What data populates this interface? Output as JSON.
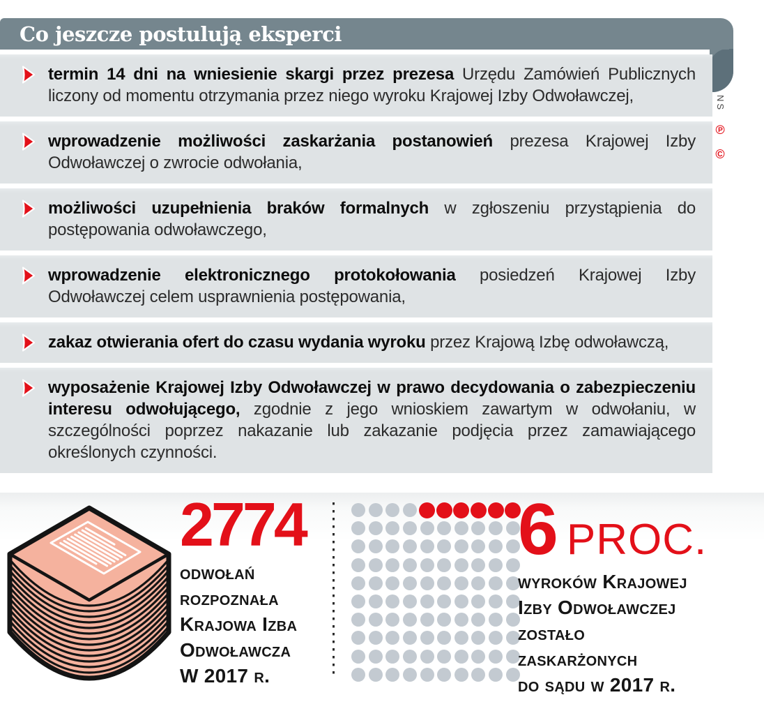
{
  "header": {
    "title": "Co jeszcze postulują eksperci"
  },
  "watermark": {
    "credit": "NS",
    "phonogram": "℗",
    "copyright": "©"
  },
  "postulates": [
    {
      "bold": "termin 14 dni na wniesienie skargi przez prezesa",
      "text": "Urzędu Zamówień Publicznych liczony od momentu otrzymania przez niego wyroku Krajowej Izby Odwoławczej,"
    },
    {
      "bold": "wprowadzenie możliwości zaskarżania postanowień",
      "text": "prezesa Krajowej Izby Odwoławczej o zwrocie odwołania,"
    },
    {
      "bold": "możliwości uzupełnienia braków formalnych",
      "text": "w zgłoszeniu przystąpienia do postępowania odwoławczego,"
    },
    {
      "bold": "wprowadzenie elektronicznego protokołowania",
      "text": "posiedzeń Krajowej Izby Odwoławczej celem usprawnienia postępowania,"
    },
    {
      "bold": "zakaz otwierania ofert do czasu wydania wyroku",
      "text": "przez Krajową Izbę odwoławczą,"
    },
    {
      "bold": "wyposażenie Krajowej Izby Odwoławczej w prawo decydowania o zabezpieczeniu interesu odwołującego,",
      "text": "zgodnie z jego wnioskiem zawartym w odwołaniu, w szczególności poprzez nakazanie lub zakazanie podjęcia przez zamawiającego określonych czynności."
    }
  ],
  "stats": {
    "left": {
      "value": "2774",
      "caption_lines": [
        "odwołań",
        "rozpoznała",
        "Krajowa Izba",
        "Odwoławcza",
        "W 2017 r."
      ]
    },
    "right": {
      "value": "6",
      "unit": "PROC.",
      "caption_lines": [
        "wyroków Krajowej",
        "Izby Odwoławczej",
        "zostało",
        "zaskarżonych",
        "do sądu w 2017 r."
      ]
    }
  },
  "pictograph": {
    "rows": 10,
    "cols": 10,
    "highlight_row": 0,
    "highlight_col_from": 4,
    "highlight_col_to": 9
  },
  "chart_data": [
    {
      "type": "pictograph",
      "units_total": 100,
      "unit_value_percent": 1,
      "units_highlighted": 6,
      "highlighted_value": "6 PROC.",
      "label": "wyroków Krajowej Izby Odwoławczej zostało zaskarżonych do sądu w 2017 r.",
      "layout": "10x10 grid, highlighted units are the last 6 of the first row",
      "unit_color": "#c3cad1",
      "highlight_color": "#e31019"
    },
    {
      "type": "stat",
      "value": 2774,
      "label": "odwołań rozpoznała Krajowa Izba Odwoławcza w 2017 r.",
      "value_color": "#e31019"
    }
  ],
  "colors": {
    "accent_red": "#e31019",
    "header_bg": "#75868e",
    "header_shade": "#5d707a",
    "row_bg": "#dfe3e5",
    "dot_gray": "#c3cad1",
    "stack_fill": "#f5b29e",
    "ink": "#141414"
  }
}
